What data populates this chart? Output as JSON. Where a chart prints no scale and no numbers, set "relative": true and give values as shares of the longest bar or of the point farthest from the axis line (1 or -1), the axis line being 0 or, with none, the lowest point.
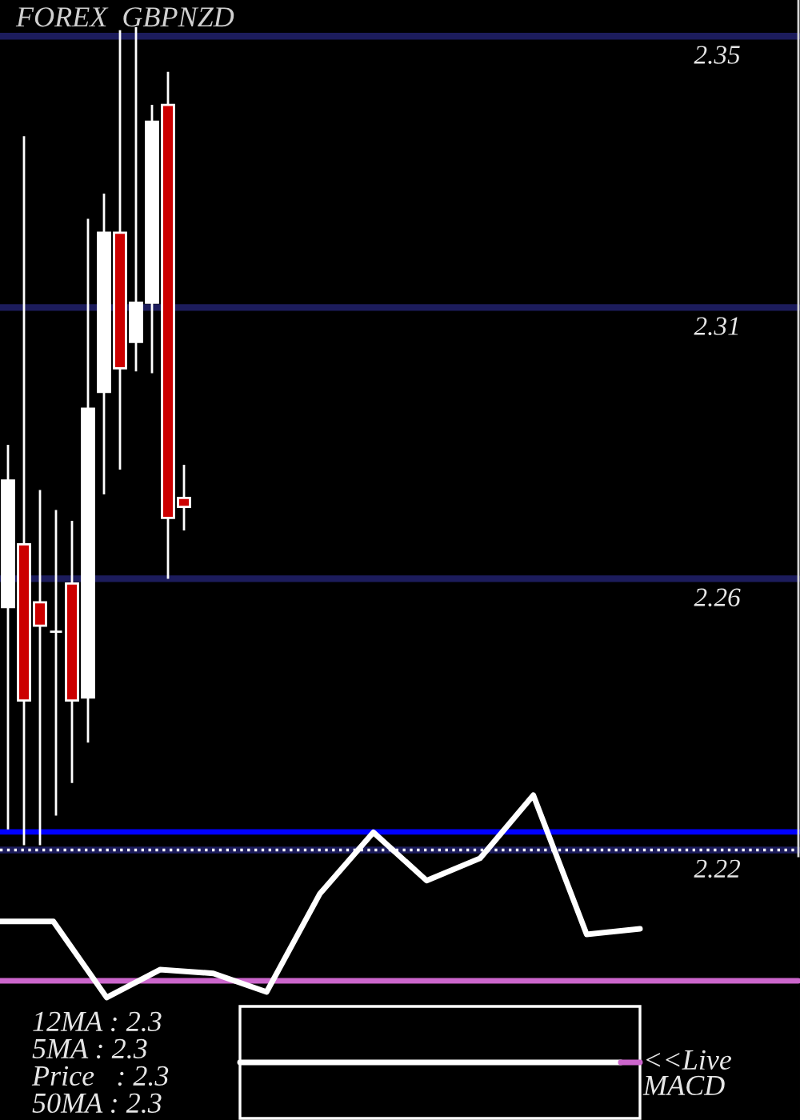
{
  "chart_data": [
    {
      "type": "candlestick",
      "title": "FOREX  GBPNZD",
      "categories": [
        null,
        null,
        null,
        null,
        null,
        null,
        null,
        null,
        null,
        null,
        null,
        null,
        null,
        null,
        null,
        null,
        null,
        null,
        null,
        null,
        null,
        null,
        null,
        null,
        null,
        null,
        null,
        null,
        null,
        null,
        null,
        null,
        null,
        null,
        null,
        null,
        null,
        null,
        null,
        null,
        null,
        null,
        null,
        null,
        null,
        null,
        null,
        null,
        null,
        null
      ],
      "ohlc": [
        [
          2.2573,
          2.2842,
          2.2204,
          2.2783
        ],
        [
          2.2677,
          2.3354,
          2.2178,
          2.2418
        ],
        [
          2.2581,
          2.2767,
          2.2178,
          2.2542
        ],
        [
          2.2532,
          2.2734,
          2.2227,
          2.2532
        ],
        [
          2.2612,
          2.2716,
          2.2281,
          2.2418
        ],
        [
          2.2423,
          2.3217,
          2.2348,
          2.2902
        ],
        [
          2.293,
          2.3259,
          2.276,
          2.3194
        ],
        [
          2.3194,
          2.353,
          2.2801,
          2.2969
        ],
        [
          2.3013,
          2.3535,
          2.2964,
          2.3078
        ],
        [
          2.3078,
          2.3406,
          2.2961,
          2.3378
        ],
        [
          2.3406,
          2.3461,
          2.262,
          2.2721
        ],
        [
          2.2754,
          2.2809,
          2.27,
          2.2739
        ],
        null,
        null,
        null,
        null,
        null,
        null,
        null,
        null,
        null,
        null,
        null,
        null,
        null,
        null,
        null,
        null,
        null,
        null,
        null,
        null,
        null,
        null,
        null,
        null,
        null,
        null,
        null,
        null,
        null,
        null,
        null,
        null,
        null,
        null,
        null,
        null,
        null,
        null
      ],
      "colors": [
        "#ffffff",
        "#cc0000",
        "#cc0000",
        "#ffffff",
        "#cc0000",
        "#ffffff",
        "#ffffff",
        "#cc0000",
        "#ffffff",
        "#ffffff",
        "#cc0000",
        "#cc0000",
        null,
        null,
        null,
        null,
        null,
        null,
        null,
        null,
        null,
        null,
        null,
        null,
        null,
        null,
        null,
        null,
        null,
        null,
        null,
        null,
        null,
        null,
        null,
        null,
        null,
        null,
        null,
        null,
        null,
        null,
        null,
        null,
        null,
        null,
        null,
        null,
        null,
        null
      ],
      "ylim": [
        2.216,
        2.358
      ],
      "yticks": [
        {
          "value": 2.352,
          "label": "2.35"
        },
        {
          "value": 2.307,
          "label": "2.31"
        },
        {
          "value": 2.262,
          "label": "2.26"
        },
        {
          "value": 2.217,
          "label": "2.22"
        }
      ],
      "tick_labels": "y",
      "grid": "y",
      "ref_lines": [
        {
          "axis": "y",
          "value": 2.22,
          "color": "#0000ff",
          "line_style": "solid"
        },
        {
          "axis": "y",
          "value": 2.217,
          "color": "#ffffff",
          "line_style": "dotted"
        }
      ],
      "annotations": [
        "12MA : 2.3",
        "5MA : 2.3",
        "Price   : 2.3",
        "50MA : 2.3",
        "<<Live",
        "MACD"
      ]
    },
    {
      "type": "line",
      "relative": true,
      "tick_labels": false,
      "categories": [
        null,
        null,
        null,
        null,
        null,
        null,
        null,
        null,
        null,
        null,
        null,
        null,
        null
      ],
      "series": [
        {
          "color": "#ffffff",
          "values": [
            0.32,
            0.32,
            -0.09,
            0.06,
            0.04,
            -0.06,
            0.47,
            0.8,
            0.54,
            0.66,
            1,
            0.25,
            0.28
          ]
        }
      ],
      "ref_lines": [
        {
          "axis": "y",
          "value": 0,
          "color": "#cc66cc",
          "line_style": "solid"
        }
      ]
    }
  ]
}
